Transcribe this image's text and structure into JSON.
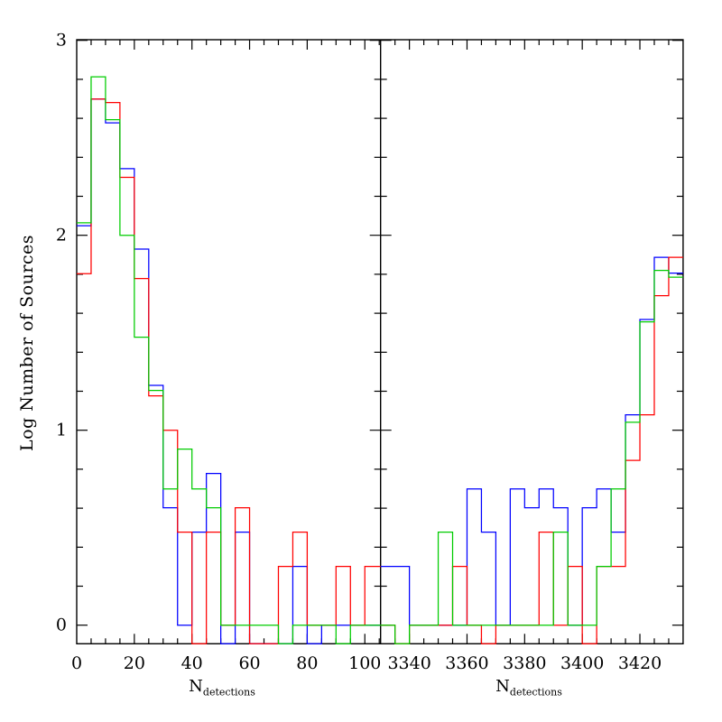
{
  "figure": {
    "background": "#ffffff",
    "frame_color": "#000000"
  },
  "chart_data": {
    "type": "bar",
    "subtype": "step-histogram-outline",
    "title": "",
    "ylabel": "Log Number of Sources",
    "xlabel": {
      "base": "N",
      "subscript": "detections"
    },
    "ylim": [
      -0.1,
      3.0
    ],
    "ytick_labels": [
      "0",
      "1",
      "2",
      "3"
    ],
    "yticks_major": [
      0,
      1,
      2,
      3
    ],
    "ytick_minor_step": 0.2,
    "grid": "off",
    "legend": "none",
    "note": "null value = zero sources in bin (outline drops below the y=0 baseline to the axis frame)",
    "series_colors": {
      "red": "#ff0000",
      "green": "#00cc00",
      "blue": "#0000ff"
    },
    "draw_order": [
      "blue",
      "red",
      "green"
    ],
    "panels": [
      {
        "name": "left",
        "xlim": [
          0,
          105.5
        ],
        "bin_start": 0,
        "bin_width": 5,
        "xticks_major": [
          0,
          20,
          40,
          60,
          80,
          100
        ],
        "xtick_labels": [
          "0",
          "20",
          "40",
          "60",
          "80",
          "100"
        ],
        "xtick_minor_step": 5,
        "series": [
          {
            "name": "red",
            "log_values": [
              1.803,
              2.699,
              2.681,
              2.297,
              1.778,
              1.176,
              1.0,
              0.477,
              null,
              0.477,
              0.0,
              0.602,
              null,
              null,
              0.301,
              0.477,
              0.0,
              0.0,
              0.301,
              0.0,
              0.301
            ]
          },
          {
            "name": "blue",
            "log_values": [
              2.049,
              2.699,
              2.577,
              2.342,
              1.929,
              1.23,
              0.602,
              0.0,
              0.477,
              0.778,
              null,
              0.477,
              null,
              null,
              null,
              0.301,
              null,
              0.0,
              0.0,
              0.0,
              0.0
            ]
          },
          {
            "name": "green",
            "log_values": [
              2.064,
              2.813,
              2.593,
              2.0,
              1.477,
              1.204,
              0.699,
              0.903,
              0.699,
              0.602,
              0.0,
              0.0,
              0.0,
              0.0,
              null,
              0.0,
              0.0,
              0.0,
              null,
              0.0,
              0.0
            ]
          }
        ]
      },
      {
        "name": "right",
        "xlim": [
          3330,
          3435
        ],
        "bin_start": 3330,
        "bin_width": 5,
        "xticks_major": [
          3340,
          3360,
          3380,
          3400,
          3420
        ],
        "xtick_labels": [
          "3340",
          "3360",
          "3380",
          "3400",
          "3420"
        ],
        "xtick_minor_step": 5,
        "series": [
          {
            "name": "red",
            "log_values": [
              0.0,
              null,
              0.0,
              0.0,
              0.0,
              0.301,
              0.0,
              null,
              0.0,
              0.0,
              0.0,
              0.477,
              0.0,
              0.301,
              null,
              0.301,
              0.301,
              0.845,
              1.079,
              1.69,
              1.887
            ]
          },
          {
            "name": "blue",
            "log_values": [
              0.301,
              0.301,
              0.0,
              0.0,
              0.0,
              0.0,
              0.699,
              0.477,
              0.0,
              0.699,
              0.602,
              0.699,
              0.602,
              0.0,
              0.602,
              0.699,
              0.477,
              1.079,
              1.568,
              1.887,
              1.806
            ]
          },
          {
            "name": "green",
            "log_values": [
              0.0,
              null,
              0.0,
              0.0,
              0.477,
              0.0,
              0.0,
              0.0,
              0.0,
              0.0,
              0.0,
              0.0,
              0.477,
              0.0,
              0.0,
              0.301,
              0.699,
              1.041,
              1.556,
              1.82,
              1.785
            ]
          }
        ]
      }
    ]
  }
}
